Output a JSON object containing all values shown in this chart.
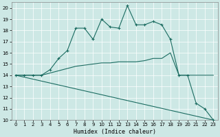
{
  "xlabel": "Humidex (Indice chaleur)",
  "xlim": [
    -0.5,
    23.5
  ],
  "ylim": [
    10,
    20.5
  ],
  "yticks": [
    10,
    11,
    12,
    13,
    14,
    15,
    16,
    17,
    18,
    19,
    20
  ],
  "xticks": [
    0,
    1,
    2,
    3,
    4,
    5,
    6,
    7,
    8,
    9,
    10,
    11,
    12,
    13,
    14,
    15,
    16,
    17,
    18,
    19,
    20,
    21,
    22,
    23
  ],
  "bg_color": "#cde8e5",
  "grid_color": "#b0d8d4",
  "line_color": "#1a6b60",
  "line1_x": [
    0,
    1,
    2,
    3,
    4,
    5,
    6,
    7,
    8,
    9,
    10,
    11,
    12,
    13,
    14,
    15,
    16,
    17,
    18,
    19,
    20,
    21,
    22,
    23
  ],
  "line1_y": [
    14,
    14,
    14,
    14,
    14.5,
    15.5,
    16.2,
    18.2,
    18.2,
    17.2,
    19.0,
    18.3,
    18.2,
    20.2,
    18.5,
    18.5,
    18.8,
    18.5,
    17.2,
    14,
    14,
    11.5,
    11,
    10
  ],
  "line2_x": [
    0,
    1,
    2,
    3,
    4,
    5,
    6,
    7,
    8,
    9,
    10,
    11,
    12,
    13,
    14,
    15,
    16,
    17,
    18,
    19,
    20,
    21,
    22,
    23
  ],
  "line2_y": [
    14,
    14,
    14,
    14,
    14.2,
    14.4,
    14.6,
    14.8,
    14.9,
    15.0,
    15.1,
    15.1,
    15.2,
    15.2,
    15.2,
    15.3,
    15.5,
    15.5,
    16.0,
    14,
    14,
    14,
    14,
    14
  ],
  "line3_x": [
    0,
    23
  ],
  "line3_y": [
    14,
    10
  ]
}
